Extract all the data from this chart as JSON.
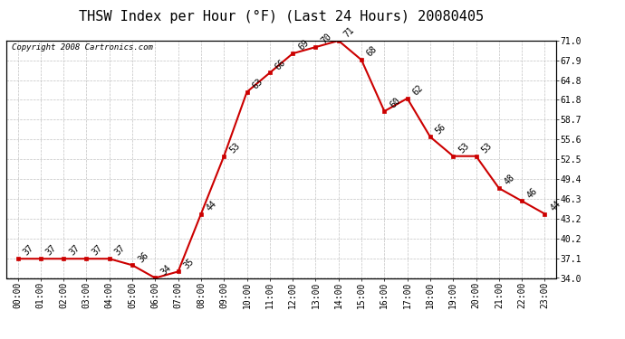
{
  "title": "THSW Index per Hour (°F) (Last 24 Hours) 20080405",
  "copyright": "Copyright 2008 Cartronics.com",
  "hours": [
    "00:00",
    "01:00",
    "02:00",
    "03:00",
    "04:00",
    "05:00",
    "06:00",
    "07:00",
    "08:00",
    "09:00",
    "10:00",
    "11:00",
    "12:00",
    "13:00",
    "14:00",
    "15:00",
    "16:00",
    "17:00",
    "18:00",
    "19:00",
    "20:00",
    "21:00",
    "22:00",
    "23:00"
  ],
  "values": [
    37,
    37,
    37,
    37,
    37,
    36,
    34,
    35,
    44,
    53,
    63,
    66,
    69,
    70,
    71,
    68,
    60,
    62,
    56,
    53,
    53,
    48,
    46,
    44
  ],
  "ylim": [
    34.0,
    71.0
  ],
  "yticks": [
    34.0,
    37.1,
    40.2,
    43.2,
    46.3,
    49.4,
    52.5,
    55.6,
    58.7,
    61.8,
    64.8,
    67.9,
    71.0
  ],
  "ytick_labels": [
    "34.0",
    "37.1",
    "40.2",
    "43.2",
    "46.3",
    "49.4",
    "52.5",
    "55.6",
    "58.7",
    "61.8",
    "64.8",
    "67.9",
    "71.0"
  ],
  "line_color": "#cc0000",
  "marker_color": "#cc0000",
  "bg_color": "#ffffff",
  "plot_bg_color": "#ffffff",
  "grid_color": "#bbbbbb",
  "title_fontsize": 11,
  "tick_fontsize": 7,
  "annotation_fontsize": 7,
  "copyright_fontsize": 6.5
}
